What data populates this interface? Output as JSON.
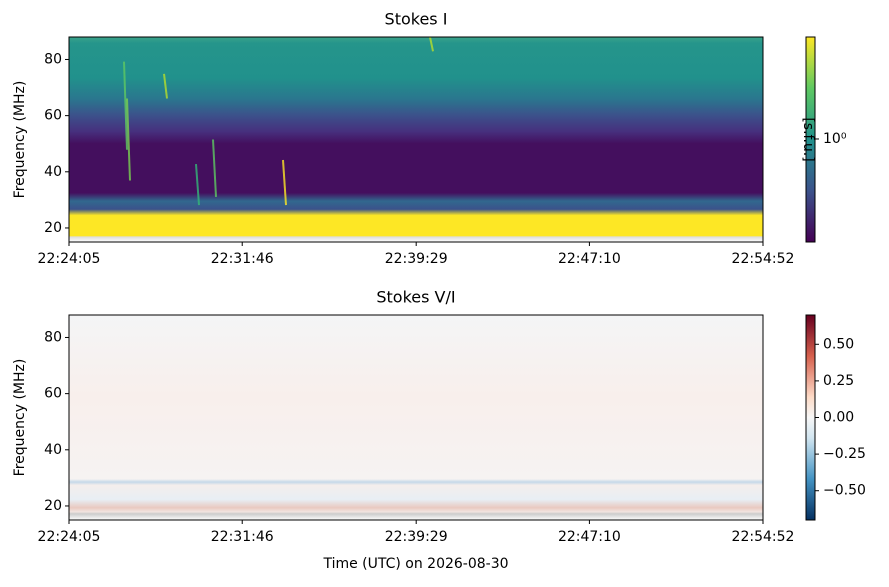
{
  "chart_data": [
    {
      "type": "heatmap",
      "title": "Stokes I",
      "y_label": "Frequency (MHz)",
      "xlim": [
        "22:24:05",
        "22:54:52"
      ],
      "xticks": [
        "22:24:05",
        "22:31:46",
        "22:39:29",
        "22:47:10",
        "22:54:52"
      ],
      "ylim": [
        15,
        88
      ],
      "yticks": [
        20,
        40,
        60,
        80
      ],
      "colormap": "viridis",
      "colorbar_label": "[s.f.u.]",
      "colorbar_log": true,
      "clim": [
        0.42,
        2.36
      ],
      "cticks": [
        {
          "value": 1,
          "label": "10⁰"
        }
      ]
    },
    {
      "type": "heatmap",
      "title": "Stokes V/I",
      "y_label": "Frequency (MHz)",
      "x_label": "Time (UTC) on 2026-08-30",
      "xlim": [
        "22:24:05",
        "22:54:52"
      ],
      "xticks": [
        "22:24:05",
        "22:31:46",
        "22:39:29",
        "22:47:10",
        "22:54:52"
      ],
      "ylim": [
        15,
        88
      ],
      "yticks": [
        20,
        40,
        60,
        80
      ],
      "colormap": "RdBu_r",
      "colorbar_log": false,
      "clim": [
        -0.7,
        0.7
      ],
      "cticks": [
        {
          "value": -0.5,
          "label": "−0.50"
        },
        {
          "value": -0.25,
          "label": "−0.25"
        },
        {
          "value": 0,
          "label": "0.00"
        },
        {
          "value": 0.25,
          "label": "0.25"
        },
        {
          "value": 0.5,
          "label": "0.50"
        }
      ]
    }
  ]
}
